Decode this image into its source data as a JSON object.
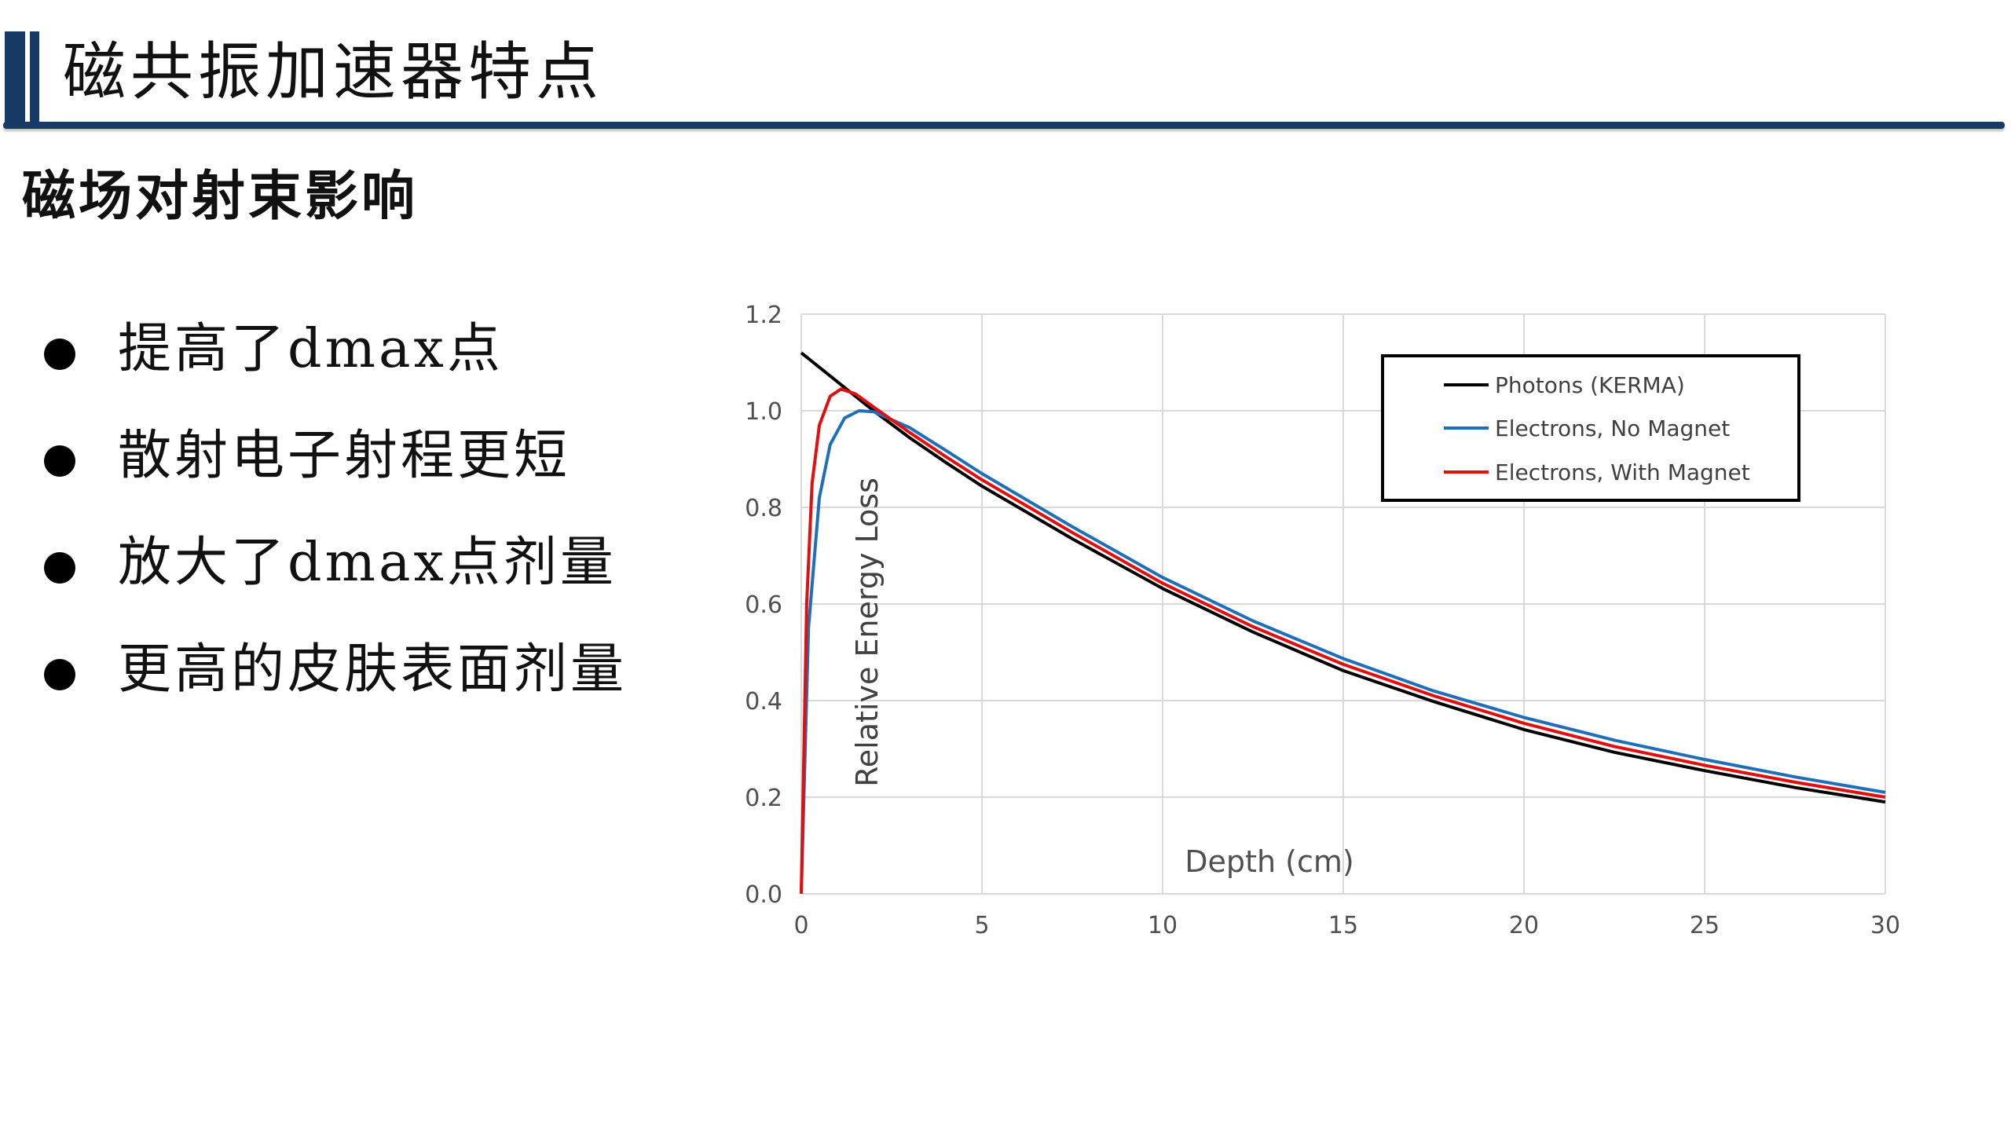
{
  "header": {
    "title": "磁共振加速器特点"
  },
  "section": {
    "subtitle": "磁场对射束影响"
  },
  "bullets": [
    "提高了dmax点",
    "散射电子射程更短",
    "放大了dmax点剂量",
    "更高的皮肤表面剂量"
  ],
  "colors": {
    "accent": "#173a66",
    "photons": "#000000",
    "electrons_no_magnet": "#1f6fb8",
    "electrons_with_magnet": "#e01010",
    "grid": "#d9d9d9"
  },
  "chart_data": {
    "type": "line",
    "xlabel": "Depth (cm)",
    "ylabel": "Relative Energy Loss",
    "xlim": [
      0,
      30
    ],
    "ylim": [
      0,
      1.2
    ],
    "xticks": [
      "0",
      "5",
      "10",
      "15",
      "20",
      "25",
      "30"
    ],
    "yticks": [
      "0.0",
      "0.2",
      "0.4",
      "0.6",
      "0.8",
      "1.0",
      "1.2"
    ],
    "grid": true,
    "legend_position": "top-right",
    "series": [
      {
        "name": "Photons (KERMA)",
        "color": "#000000",
        "x": [
          0,
          1,
          2,
          3,
          4,
          5,
          7.5,
          10,
          12.5,
          15,
          17.5,
          20,
          22.5,
          25,
          27.5,
          30
        ],
        "y": [
          1.12,
          1.06,
          1.0,
          0.944,
          0.893,
          0.844,
          0.735,
          0.632,
          0.542,
          0.462,
          0.398,
          0.34,
          0.293,
          0.255,
          0.22,
          0.19
        ]
      },
      {
        "name": "Electrons, No Magnet",
        "color": "#1f6fb8",
        "x": [
          0,
          0.2,
          0.5,
          0.8,
          1.2,
          1.6,
          2,
          3,
          4,
          5,
          7.5,
          10,
          12.5,
          15,
          17.5,
          20,
          22.5,
          25,
          27.5,
          30
        ],
        "y": [
          0.0,
          0.55,
          0.82,
          0.93,
          0.985,
          1.0,
          0.998,
          0.965,
          0.918,
          0.87,
          0.76,
          0.655,
          0.565,
          0.487,
          0.42,
          0.365,
          0.318,
          0.278,
          0.242,
          0.21
        ]
      },
      {
        "name": "Electrons, With Magnet",
        "color": "#e01010",
        "x": [
          0,
          0.15,
          0.3,
          0.5,
          0.8,
          1.1,
          1.5,
          2,
          3,
          4,
          5,
          7.5,
          10,
          12.5,
          15,
          17.5,
          20,
          22.5,
          25,
          27.5,
          30
        ],
        "y": [
          0.0,
          0.6,
          0.85,
          0.97,
          1.03,
          1.045,
          1.035,
          1.008,
          0.955,
          0.905,
          0.857,
          0.748,
          0.643,
          0.553,
          0.475,
          0.41,
          0.353,
          0.305,
          0.266,
          0.231,
          0.2
        ]
      }
    ]
  }
}
